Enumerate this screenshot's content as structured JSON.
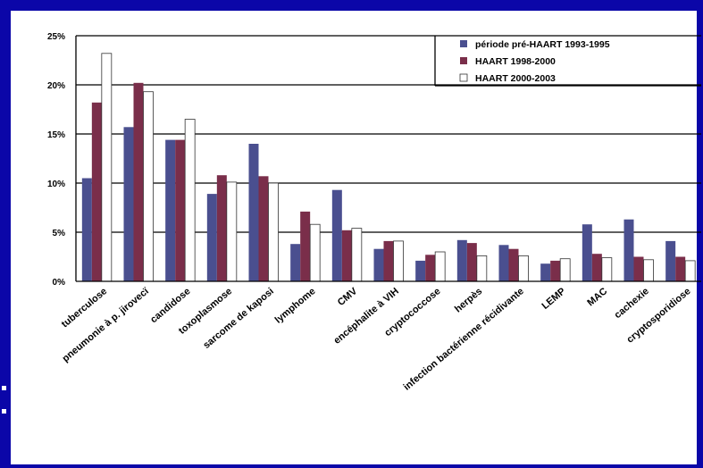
{
  "chart_data": {
    "type": "bar",
    "categories": [
      "tuberculose",
      "pneumonie à p. jirovecï",
      "candidose",
      "toxoplasmose",
      "sarcome de kaposi",
      "lymphome",
      "CMV",
      "encéphalite à VIH",
      "cryptococcose",
      "herpès",
      "infection bactérienne récidivante",
      "LEMP",
      "MAC",
      "cachexie",
      "cryptosporidiose"
    ],
    "series": [
      {
        "name": "période pré-HAART 1993-1995",
        "color": "#4a4f8f",
        "values": [
          10.5,
          15.7,
          14.4,
          8.9,
          14.0,
          3.8,
          9.3,
          3.3,
          2.1,
          4.2,
          3.7,
          1.8,
          5.8,
          6.3,
          4.1
        ]
      },
      {
        "name": "HAART 1998-2000",
        "color": "#7a2e4a",
        "values": [
          18.2,
          20.2,
          14.4,
          10.8,
          10.7,
          7.1,
          5.2,
          4.1,
          2.7,
          3.9,
          3.3,
          2.1,
          2.8,
          2.5,
          2.5
        ]
      },
      {
        "name": "HAART 2000-2003",
        "color": "#ffffff",
        "values": [
          23.2,
          19.3,
          16.5,
          10.1,
          10.0,
          5.8,
          5.4,
          4.1,
          3.0,
          2.6,
          2.6,
          2.3,
          2.4,
          2.2,
          2.1
        ]
      }
    ],
    "yticks": [
      "0%",
      "5%",
      "10%",
      "15%",
      "20%",
      "25%"
    ],
    "ylim": [
      0,
      25
    ],
    "grid": true,
    "legend_position": "top-right"
  }
}
